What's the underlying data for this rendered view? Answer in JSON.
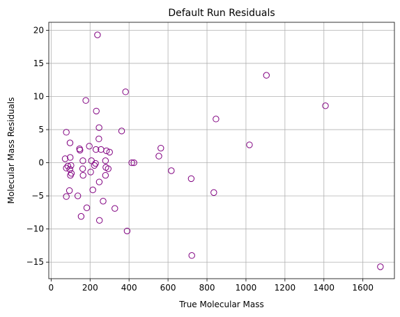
{
  "chart_data": {
    "type": "scatter",
    "title": "Default Run Residuals",
    "xlabel": "True Molecular Mass",
    "ylabel": "Molecular Mass Residuals",
    "xlim": [
      -12,
      1762
    ],
    "ylim": [
      -17.5,
      21.2
    ],
    "xticks": [
      0,
      200,
      400,
      600,
      800,
      1000,
      1200,
      1400,
      1600
    ],
    "yticks": [
      -15,
      -10,
      -5,
      0,
      5,
      10,
      15,
      20
    ],
    "grid": true,
    "marker": {
      "shape": "circle",
      "fill": "none",
      "edge_color": "#800080"
    },
    "points": [
      {
        "x": 238,
        "y": 19.3
      },
      {
        "x": 1105,
        "y": 13.2
      },
      {
        "x": 382,
        "y": 10.7
      },
      {
        "x": 178,
        "y": 9.4
      },
      {
        "x": 1408,
        "y": 8.6
      },
      {
        "x": 232,
        "y": 7.8
      },
      {
        "x": 846,
        "y": 6.6
      },
      {
        "x": 246,
        "y": 5.3
      },
      {
        "x": 362,
        "y": 4.8
      },
      {
        "x": 78,
        "y": 4.6
      },
      {
        "x": 245,
        "y": 3.6
      },
      {
        "x": 97,
        "y": 3.0
      },
      {
        "x": 1018,
        "y": 2.7
      },
      {
        "x": 196,
        "y": 2.5
      },
      {
        "x": 563,
        "y": 2.2
      },
      {
        "x": 146,
        "y": 2.1
      },
      {
        "x": 148,
        "y": 1.9
      },
      {
        "x": 230,
        "y": 2.0
      },
      {
        "x": 256,
        "y": 2.0
      },
      {
        "x": 284,
        "y": 1.8
      },
      {
        "x": 300,
        "y": 1.6
      },
      {
        "x": 553,
        "y": 1.0
      },
      {
        "x": 98,
        "y": 0.8
      },
      {
        "x": 72,
        "y": 0.6
      },
      {
        "x": 163,
        "y": 0.3
      },
      {
        "x": 207,
        "y": 0.3
      },
      {
        "x": 279,
        "y": 0.3
      },
      {
        "x": 414,
        "y": 0.0
      },
      {
        "x": 425,
        "y": 0.0
      },
      {
        "x": 228,
        "y": -0.1
      },
      {
        "x": 222,
        "y": -0.4
      },
      {
        "x": 102,
        "y": -0.4
      },
      {
        "x": 86,
        "y": -0.5
      },
      {
        "x": 78,
        "y": -0.8
      },
      {
        "x": 162,
        "y": -0.9
      },
      {
        "x": 281,
        "y": -0.7
      },
      {
        "x": 96,
        "y": -1.0
      },
      {
        "x": 293,
        "y": -0.9
      },
      {
        "x": 617,
        "y": -1.2
      },
      {
        "x": 203,
        "y": -1.4
      },
      {
        "x": 104,
        "y": -1.6
      },
      {
        "x": 99,
        "y": -1.9
      },
      {
        "x": 164,
        "y": -1.9
      },
      {
        "x": 279,
        "y": -1.9
      },
      {
        "x": 719,
        "y": -2.4
      },
      {
        "x": 247,
        "y": -2.9
      },
      {
        "x": 214,
        "y": -4.1
      },
      {
        "x": 94,
        "y": -4.2
      },
      {
        "x": 835,
        "y": -4.5
      },
      {
        "x": 137,
        "y": -5.0
      },
      {
        "x": 78,
        "y": -5.1
      },
      {
        "x": 267,
        "y": -5.8
      },
      {
        "x": 183,
        "y": -6.8
      },
      {
        "x": 327,
        "y": -6.9
      },
      {
        "x": 154,
        "y": -8.1
      },
      {
        "x": 248,
        "y": -8.7
      },
      {
        "x": 390,
        "y": -10.3
      },
      {
        "x": 722,
        "y": -14.0
      },
      {
        "x": 1690,
        "y": -15.7
      }
    ]
  }
}
